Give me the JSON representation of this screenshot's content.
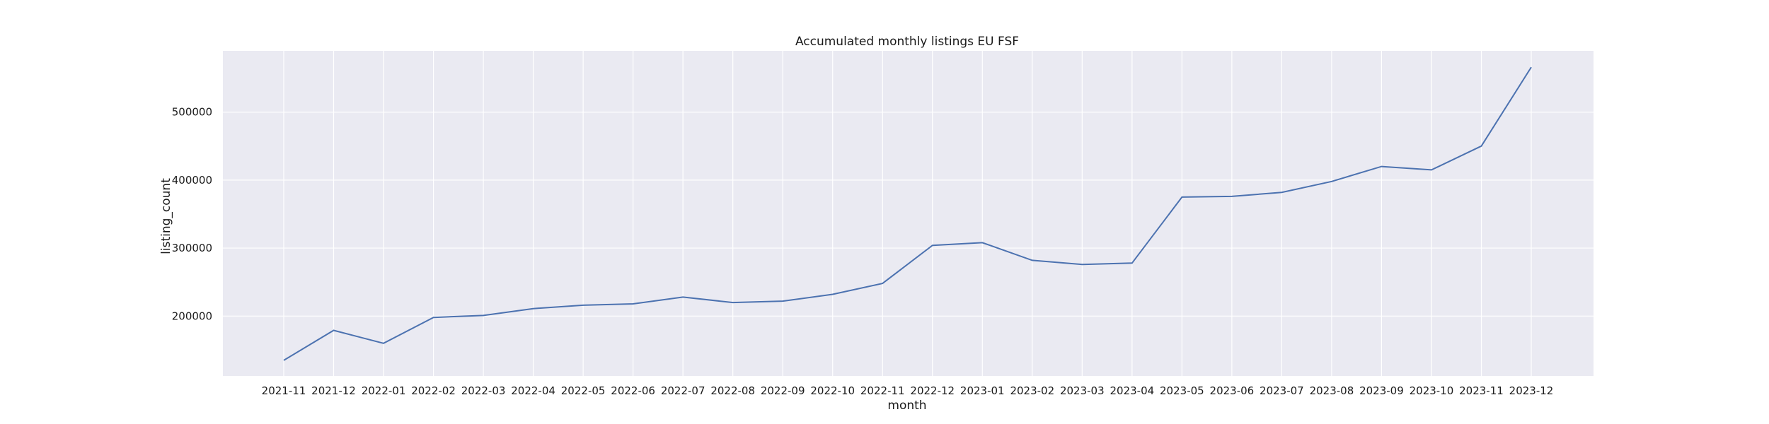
{
  "chart_data": {
    "type": "line",
    "title": "Accumulated monthly listings EU FSF",
    "xlabel": "month",
    "ylabel": "listing_count",
    "categories": [
      "2021-11",
      "2021-12",
      "2022-01",
      "2022-02",
      "2022-03",
      "2022-04",
      "2022-05",
      "2022-06",
      "2022-07",
      "2022-08",
      "2022-09",
      "2022-10",
      "2022-11",
      "2022-12",
      "2023-01",
      "2023-02",
      "2023-03",
      "2023-04",
      "2023-05",
      "2023-06",
      "2023-07",
      "2023-08",
      "2023-09",
      "2023-10",
      "2023-11",
      "2023-12"
    ],
    "series": [
      {
        "values": [
          135000,
          179000,
          160000,
          198000,
          201000,
          211000,
          216000,
          218000,
          228000,
          220000,
          222000,
          232000,
          248000,
          304000,
          308000,
          282000,
          276000,
          278000,
          375000,
          376000,
          382000,
          398000,
          420000,
          415000,
          450000,
          566000
        ],
        "color": "#4c72b0"
      }
    ],
    "yticks": [
      200000,
      300000,
      400000,
      500000
    ],
    "ytick_labels": [
      "200000",
      "300000",
      "400000",
      "500000"
    ],
    "ylim": [
      112000,
      590000
    ],
    "grid": true,
    "background": "#eaeaf2",
    "grid_color": "#ffffff"
  }
}
